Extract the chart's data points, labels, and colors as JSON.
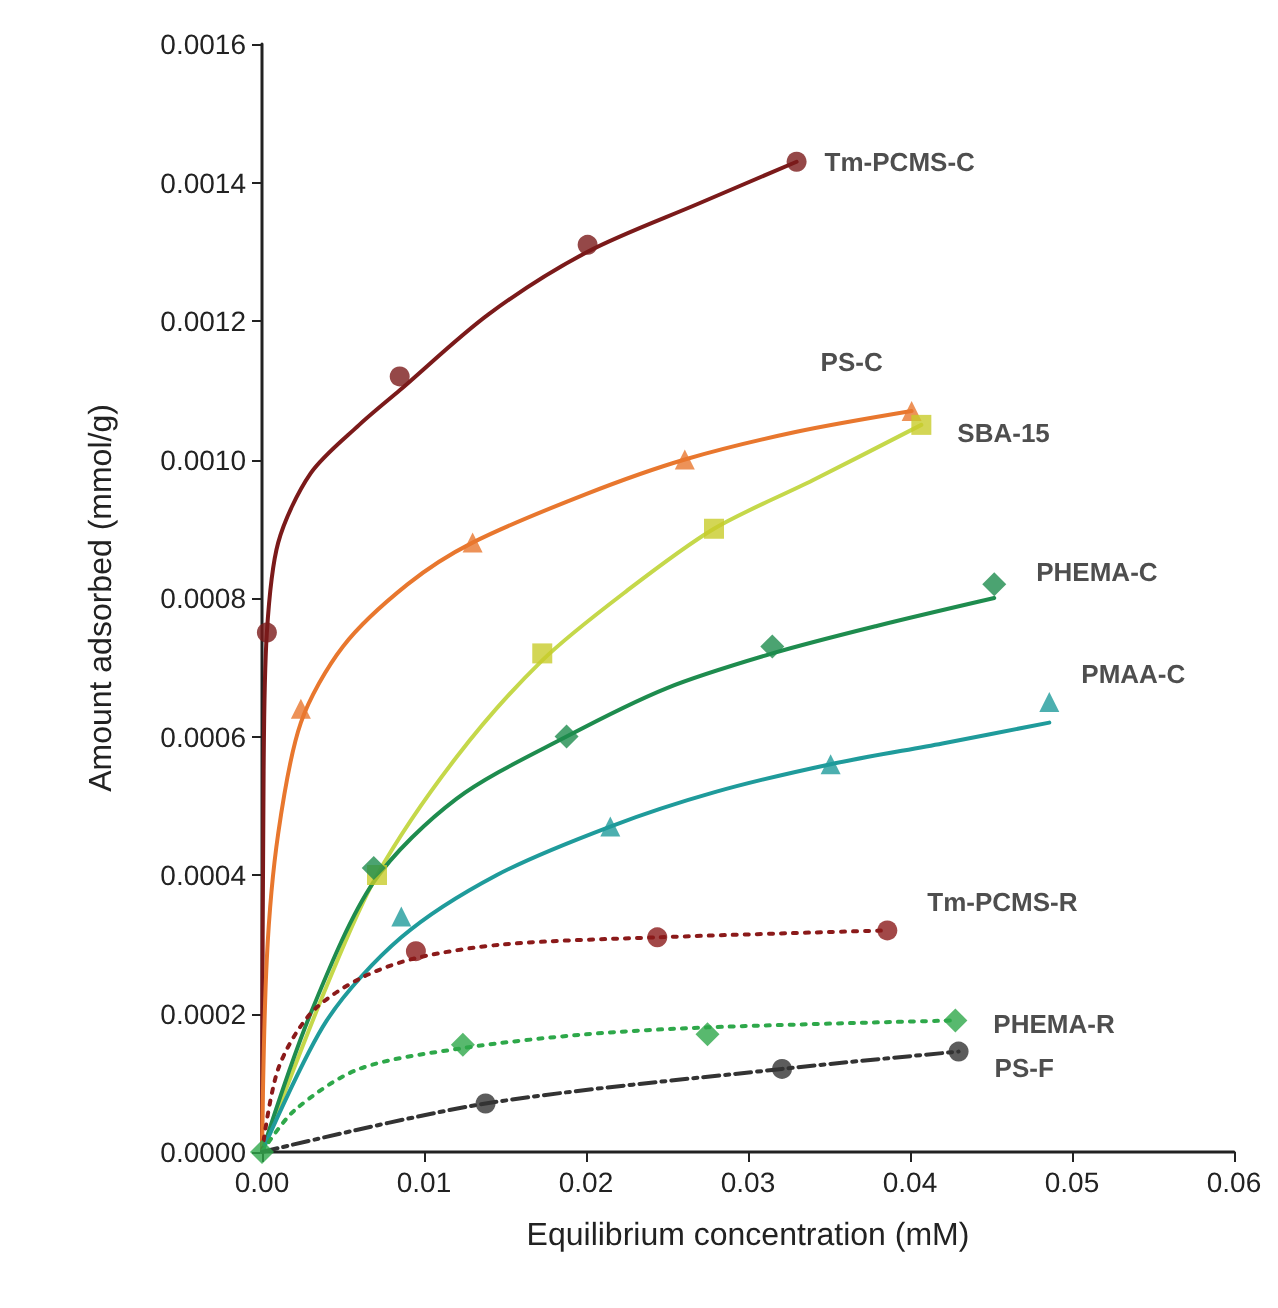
{
  "chart_data": {
    "type": "scatter",
    "xlabel": "Equilibrium concentration (mM)",
    "ylabel": "Amount adsorbed (mmol/g)",
    "xlim": [
      0,
      0.06
    ],
    "xticks": [
      {
        "value": 0,
        "label": "0.00"
      },
      {
        "value": 0.01,
        "label": "0.01"
      },
      {
        "value": 0.02,
        "label": "0.02"
      },
      {
        "value": 0.03,
        "label": "0.03"
      },
      {
        "value": 0.04,
        "label": "0.04"
      },
      {
        "value": 0.05,
        "label": "0.05"
      },
      {
        "value": 0.06,
        "label": "0.06"
      }
    ],
    "ylim": [
      0,
      0.0016
    ],
    "yticks": [
      {
        "value": 0,
        "label": "0.0000"
      },
      {
        "value": 0.0002,
        "label": "0.0002"
      },
      {
        "value": 0.0004,
        "label": "0.0004"
      },
      {
        "value": 0.0006,
        "label": "0.0006"
      },
      {
        "value": 0.0008,
        "label": "0.0008"
      },
      {
        "value": 0.001,
        "label": "0.0010"
      },
      {
        "value": 0.0012,
        "label": "0.0012"
      },
      {
        "value": 0.0014,
        "label": "0.0014"
      },
      {
        "value": 0.0016,
        "label": "0.0016"
      }
    ],
    "grid": false,
    "legend": false,
    "series": [
      {
        "type": "line",
        "marker": "none",
        "line_style": "solid",
        "color": "#7b1a1a",
        "x": [
          0,
          0.0001,
          0.0003,
          0.001,
          0.003,
          0.006,
          0.0085,
          0.014,
          0.0201,
          0.027,
          0.033
        ],
        "values": [
          0,
          0.00055,
          0.00075,
          0.00088,
          0.00098,
          0.00105,
          0.0011,
          0.00121,
          0.0013,
          0.00137,
          0.00143
        ]
      },
      {
        "type": "line",
        "marker": "none",
        "line_style": "solid",
        "color": "#e8772e",
        "x": [
          0,
          0.0003,
          0.001,
          0.0024,
          0.005,
          0.009,
          0.013,
          0.02,
          0.0261,
          0.033,
          0.0401
        ],
        "values": [
          0,
          0.00028,
          0.00046,
          0.00062,
          0.00073,
          0.00082,
          0.00088,
          0.00095,
          0.001,
          0.00104,
          0.00107
        ]
      },
      {
        "type": "line",
        "marker": "none",
        "line_style": "solid",
        "color": "#c5d84a",
        "x": [
          0,
          0.004,
          0.0071,
          0.012,
          0.0173,
          0.0225,
          0.0279,
          0.034,
          0.0407
        ],
        "values": [
          0,
          0.00024,
          0.0004,
          0.00057,
          0.00071,
          0.00081,
          0.0009,
          0.00097,
          0.00105
        ]
      },
      {
        "type": "line",
        "marker": "none",
        "line_style": "solid",
        "color": "#1e8c4e",
        "x": [
          0,
          0.003,
          0.0069,
          0.012,
          0.0188,
          0.025,
          0.0315,
          0.038,
          0.0452
        ],
        "values": [
          0,
          0.0002,
          0.00039,
          0.00051,
          0.0006,
          0.00067,
          0.00072,
          0.00076,
          0.0008
        ]
      },
      {
        "type": "line",
        "marker": "none",
        "line_style": "solid",
        "color": "#1f9b9b",
        "x": [
          0,
          0.004,
          0.0086,
          0.0145,
          0.0215,
          0.028,
          0.0351,
          0.042,
          0.0486
        ],
        "values": [
          0,
          0.00019,
          0.00031,
          0.0004,
          0.00047,
          0.00052,
          0.00056,
          0.00059,
          0.00062
        ]
      },
      {
        "type": "line",
        "marker": "none",
        "line_style": "dotted",
        "color": "#8b1a1a",
        "x": [
          0,
          0.001,
          0.003,
          0.006,
          0.0095,
          0.015,
          0.0244,
          0.0386
        ],
        "values": [
          0,
          0.00012,
          0.0002,
          0.00025,
          0.00028,
          0.0003,
          0.00031,
          0.00032
        ]
      },
      {
        "type": "line",
        "marker": "none",
        "line_style": "dotted",
        "color": "#2ea84a",
        "x": [
          0,
          0.002,
          0.006,
          0.0124,
          0.02,
          0.0275,
          0.0428
        ],
        "values": [
          0,
          6e-05,
          0.00012,
          0.00015,
          0.00017,
          0.00018,
          0.00019
        ]
      },
      {
        "type": "line",
        "marker": "none",
        "line_style": "dashed",
        "color": "#333333",
        "x": [
          0,
          0.0138,
          0.0321,
          0.043
        ],
        "values": [
          0,
          7e-05,
          0.00012,
          0.000145
        ]
      },
      {
        "name": "Tm-PCMS-C",
        "marker": "circle",
        "color": "#7b1a1a",
        "x": [
          0.0003,
          0.0085,
          0.0201,
          0.033
        ],
        "values": [
          0.00075,
          0.00112,
          0.00131,
          0.00143
        ]
      },
      {
        "name": "PS-C",
        "marker": "triangle",
        "color": "#e8772e",
        "x": [
          0.0024,
          0.013,
          0.0261,
          0.0401
        ],
        "values": [
          0.00064,
          0.00088,
          0.001,
          0.00107
        ]
      },
      {
        "name": "SBA-15",
        "marker": "square",
        "color": "#c8cc2a",
        "x": [
          0.0071,
          0.0173,
          0.0279,
          0.0407
        ],
        "values": [
          0.0004,
          0.00072,
          0.0009,
          0.00105
        ]
      },
      {
        "name": "PHEMA-C",
        "marker": "diamond",
        "color": "#1e8c4e",
        "x": [
          0.0069,
          0.0188,
          0.0315,
          0.0452
        ],
        "values": [
          0.00041,
          0.0006,
          0.00073,
          0.00082
        ]
      },
      {
        "name": "PMAA-C",
        "marker": "triangle",
        "color": "#1f9b9b",
        "x": [
          0.0086,
          0.0215,
          0.0351,
          0.0486
        ],
        "values": [
          0.00034,
          0.00047,
          0.00056,
          0.00065
        ]
      },
      {
        "name": "Tm-PCMS-R",
        "marker": "circle",
        "color": "#8b1a1a",
        "x": [
          0.0095,
          0.0244,
          0.0386
        ],
        "values": [
          0.00029,
          0.00031,
          0.00032
        ]
      },
      {
        "name": "PHEMA-R",
        "marker": "diamond",
        "color": "#2ea84a",
        "x": [
          0,
          0.0124,
          0.0275,
          0.0428
        ],
        "values": [
          0,
          0.000155,
          0.00017,
          0.00019
        ]
      },
      {
        "name": "PS-F",
        "marker": "circle",
        "color": "#333333",
        "x": [
          0.0138,
          0.0321,
          0.043
        ],
        "values": [
          7e-05,
          0.00012,
          0.000145
        ]
      }
    ]
  }
}
